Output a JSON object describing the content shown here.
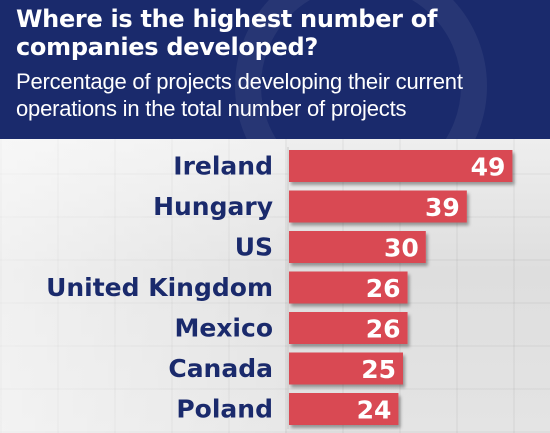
{
  "header": {
    "title": "Where is the highest number of companies developed?",
    "subtitle": "Percentage of projects developing their current operations in the total number of projects"
  },
  "colors": {
    "header_bg": "#1a2a6c",
    "bar": "#d94a52",
    "label": "#1a2a6c",
    "value_text": "#ffffff"
  },
  "chart_data": {
    "type": "bar",
    "orientation": "horizontal",
    "title": "Where is the highest number of companies developed?",
    "subtitle": "Percentage of projects developing their current operations in the total number of projects",
    "categories": [
      "Ireland",
      "Hungary",
      "US",
      "United Kingdom",
      "Mexico",
      "Canada",
      "Poland"
    ],
    "values": [
      49,
      39,
      30,
      26,
      26,
      25,
      24
    ],
    "xlim": [
      0,
      50
    ],
    "grid": false,
    "data_labels": true
  }
}
